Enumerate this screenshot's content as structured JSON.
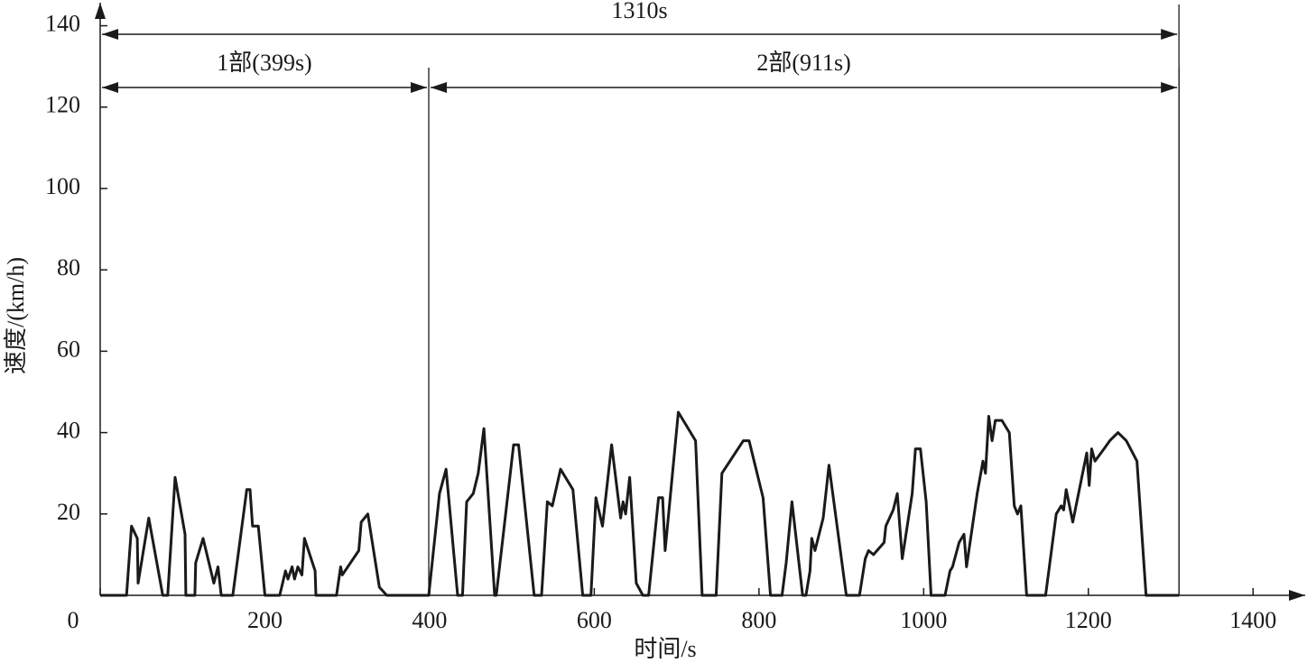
{
  "chart_data": {
    "type": "line",
    "x_label": "时间/s",
    "y_label": "速度/(km/h)",
    "xlim": [
      0,
      1460
    ],
    "ylim": [
      0,
      145
    ],
    "xticks": [
      0,
      200,
      400,
      600,
      800,
      1000,
      1200,
      1400
    ],
    "yticks": [
      20,
      40,
      60,
      80,
      100,
      120,
      140
    ],
    "color": "#1a1a1a",
    "annotations": [
      {
        "label": "1310s",
        "start": 0,
        "end": 1310
      },
      {
        "label": "1部(399s)",
        "start": 0,
        "end": 399
      },
      {
        "label": "2部(911s)",
        "start": 399,
        "end": 1310
      }
    ],
    "x": [
      0,
      32,
      38,
      45,
      46,
      59,
      76,
      82,
      91,
      103,
      104,
      115,
      116,
      125,
      138,
      143,
      147,
      161,
      178,
      182,
      185,
      192,
      200,
      218,
      225,
      228,
      233,
      236,
      240,
      245,
      248,
      261,
      262,
      287,
      292,
      294,
      314,
      317,
      325,
      339,
      348,
      399,
      412,
      420,
      434,
      440,
      445,
      453,
      459,
      466,
      479,
      481,
      502,
      508,
      527,
      536,
      543,
      549,
      559,
      574,
      586,
      596,
      602,
      610,
      621,
      632,
      635,
      638,
      643,
      651,
      659,
      666,
      678,
      683,
      686,
      702,
      723,
      731,
      748,
      755,
      768,
      781,
      788,
      805,
      814,
      828,
      833,
      840,
      853,
      857,
      862,
      864,
      868,
      878,
      885,
      906,
      922,
      929,
      933,
      939,
      952,
      954,
      963,
      968,
      974,
      986,
      990,
      996,
      1003,
      1009,
      1026,
      1032,
      1035,
      1043,
      1049,
      1052,
      1065,
      1072,
      1075,
      1079,
      1083,
      1087,
      1095,
      1104,
      1110,
      1114,
      1118,
      1125,
      1148,
      1161,
      1167,
      1170,
      1173,
      1181,
      1192,
      1198,
      1201,
      1204,
      1208,
      1219,
      1226,
      1236,
      1246,
      1259,
      1270,
      1310
    ],
    "values": [
      0,
      0,
      17,
      14,
      3,
      19,
      0,
      0,
      29,
      15,
      0,
      0,
      8,
      14,
      3,
      7,
      0,
      0,
      26,
      26,
      17,
      17,
      0,
      0,
      6,
      4,
      7,
      4,
      7,
      5,
      14,
      6,
      0,
      0,
      7,
      5,
      11,
      18,
      20,
      2,
      0,
      0,
      25,
      31,
      0,
      0,
      23,
      25,
      30,
      41,
      0,
      0,
      37,
      37,
      0,
      0,
      23,
      22,
      31,
      26,
      0,
      0,
      24,
      17,
      37,
      19,
      23,
      20,
      29,
      3,
      0,
      0,
      24,
      24,
      11,
      45,
      38,
      0,
      0,
      30,
      34,
      38,
      38,
      24,
      0,
      0,
      8,
      23,
      0,
      0,
      6,
      14,
      11,
      19,
      32,
      0,
      0,
      9,
      11,
      10,
      13,
      17,
      21,
      25,
      9,
      25,
      36,
      36,
      23,
      0,
      0,
      6,
      7,
      13,
      15,
      7,
      25,
      33,
      30,
      44,
      38,
      43,
      43,
      40,
      22,
      20,
      22,
      0,
      0,
      20,
      22,
      21,
      26,
      18,
      29,
      35,
      27,
      36,
      33,
      36,
      38,
      40,
      38,
      33,
      0,
      0
    ]
  }
}
